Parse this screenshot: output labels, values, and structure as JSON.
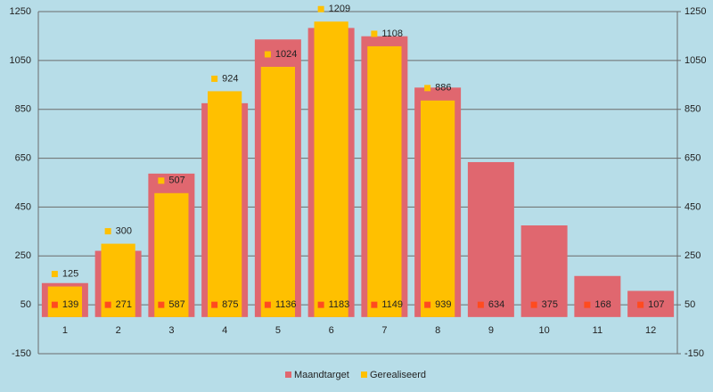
{
  "chart_data": {
    "type": "bar",
    "categories": [
      "1",
      "2",
      "3",
      "4",
      "5",
      "6",
      "7",
      "8",
      "9",
      "10",
      "11",
      "12"
    ],
    "series": [
      {
        "name": "Maandtarget",
        "color": "#e0676f",
        "values": [
          139,
          271,
          587,
          875,
          1136,
          1183,
          1149,
          939,
          634,
          375,
          168,
          107
        ]
      },
      {
        "name": "Gerealiseerd",
        "color": "#ffc000",
        "values": [
          125,
          300,
          507,
          924,
          1024,
          1209,
          1108,
          886,
          null,
          null,
          null,
          null
        ]
      }
    ],
    "ylim": [
      -150,
      1250
    ],
    "yticks": [
      -150,
      50,
      250,
      450,
      650,
      850,
      1050,
      1250
    ],
    "y2lim": [
      -150,
      1250
    ],
    "y2ticks": [
      -150,
      50,
      250,
      450,
      650,
      850,
      1050,
      1250
    ],
    "grid": true
  }
}
